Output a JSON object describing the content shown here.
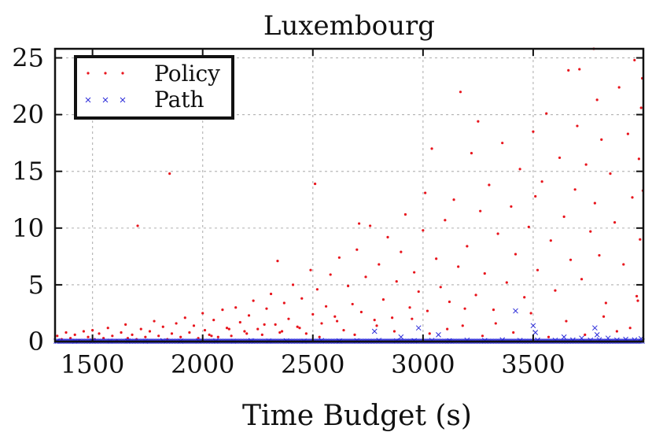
{
  "chart_data": {
    "type": "scatter",
    "title": "Luxembourg",
    "xlabel": "Time Budget (s)",
    "ylabel": "",
    "xlim": [
      1330,
      4000
    ],
    "ylim": [
      0,
      25.8
    ],
    "xticks": [
      1500,
      2000,
      2500,
      3000,
      3500
    ],
    "yticks": [
      0,
      5,
      10,
      15,
      20,
      25
    ],
    "xtick_labels": [
      "1500",
      "2000",
      "2500",
      "3000",
      "3500"
    ],
    "ytick_labels": [
      "0",
      "5",
      "10",
      "15",
      "20",
      "25"
    ],
    "grid": true,
    "legend_position": "top-left",
    "series": [
      {
        "name": "Policy",
        "marker": "dot",
        "color": "#e8141c",
        "points": [
          [
            1340,
            0.5
          ],
          [
            1360,
            0.2
          ],
          [
            1380,
            0.8
          ],
          [
            1400,
            0.3
          ],
          [
            1420,
            0.6
          ],
          [
            1440,
            0.1
          ],
          [
            1460,
            0.9
          ],
          [
            1480,
            0.4
          ],
          [
            1500,
            1.0
          ],
          [
            1510,
            0.2
          ],
          [
            1530,
            0.7
          ],
          [
            1550,
            0.3
          ],
          [
            1570,
            1.2
          ],
          [
            1590,
            0.5
          ],
          [
            1610,
            0.1
          ],
          [
            1630,
            0.8
          ],
          [
            1650,
            1.5
          ],
          [
            1660,
            0.3
          ],
          [
            1680,
            0.6
          ],
          [
            1700,
            0.2
          ],
          [
            1705,
            10.2
          ],
          [
            1720,
            1.1
          ],
          [
            1740,
            0.4
          ],
          [
            1760,
            0.9
          ],
          [
            1780,
            1.8
          ],
          [
            1800,
            0.5
          ],
          [
            1820,
            1.3
          ],
          [
            1840,
            0.2
          ],
          [
            1850,
            14.8
          ],
          [
            1860,
            0.7
          ],
          [
            1880,
            1.6
          ],
          [
            1900,
            0.4
          ],
          [
            1920,
            2.1
          ],
          [
            1940,
            0.8
          ],
          [
            1960,
            1.4
          ],
          [
            1980,
            0.3
          ],
          [
            2000,
            2.5
          ],
          [
            2010,
            1.0
          ],
          [
            2030,
            0.6
          ],
          [
            2050,
            1.9
          ],
          [
            2070,
            0.4
          ],
          [
            2090,
            2.8
          ],
          [
            2110,
            1.2
          ],
          [
            2130,
            0.5
          ],
          [
            2150,
            3.0
          ],
          [
            2170,
            1.7
          ],
          [
            2190,
            0.9
          ],
          [
            2210,
            2.3
          ],
          [
            2230,
            3.6
          ],
          [
            2250,
            1.1
          ],
          [
            2270,
            0.6
          ],
          [
            2290,
            2.9
          ],
          [
            2310,
            4.2
          ],
          [
            2330,
            1.5
          ],
          [
            2340,
            7.1
          ],
          [
            2350,
            0.8
          ],
          [
            2370,
            3.4
          ],
          [
            2390,
            2.0
          ],
          [
            2410,
            5.0
          ],
          [
            2430,
            1.3
          ],
          [
            2450,
            3.8
          ],
          [
            2470,
            0.7
          ],
          [
            2490,
            6.3
          ],
          [
            2500,
            2.4
          ],
          [
            2510,
            13.9
          ],
          [
            2520,
            4.6
          ],
          [
            2540,
            1.6
          ],
          [
            2560,
            3.1
          ],
          [
            2580,
            5.9
          ],
          [
            2600,
            2.2
          ],
          [
            2620,
            7.4
          ],
          [
            2640,
            1.0
          ],
          [
            2660,
            4.9
          ],
          [
            2680,
            3.3
          ],
          [
            2700,
            8.1
          ],
          [
            2710,
            10.4
          ],
          [
            2720,
            2.6
          ],
          [
            2740,
            5.7
          ],
          [
            2760,
            10.2
          ],
          [
            2780,
            1.9
          ],
          [
            2800,
            6.8
          ],
          [
            2820,
            3.7
          ],
          [
            2840,
            9.2
          ],
          [
            2860,
            2.1
          ],
          [
            2880,
            5.3
          ],
          [
            2900,
            7.9
          ],
          [
            2920,
            11.2
          ],
          [
            2940,
            3.0
          ],
          [
            2960,
            6.1
          ],
          [
            2980,
            4.4
          ],
          [
            3000,
            9.8
          ],
          [
            3010,
            13.1
          ],
          [
            3020,
            2.7
          ],
          [
            3040,
            17.0
          ],
          [
            3060,
            7.3
          ],
          [
            3080,
            4.8
          ],
          [
            3100,
            10.7
          ],
          [
            3120,
            3.5
          ],
          [
            3140,
            12.5
          ],
          [
            3160,
            6.6
          ],
          [
            3170,
            22.0
          ],
          [
            3180,
            1.4
          ],
          [
            3200,
            8.4
          ],
          [
            3220,
            16.6
          ],
          [
            3240,
            4.1
          ],
          [
            3250,
            19.4
          ],
          [
            3260,
            11.5
          ],
          [
            3280,
            6.0
          ],
          [
            3300,
            13.8
          ],
          [
            3320,
            2.8
          ],
          [
            3340,
            9.5
          ],
          [
            3360,
            17.5
          ],
          [
            3380,
            5.2
          ],
          [
            3400,
            11.9
          ],
          [
            3420,
            7.7
          ],
          [
            3440,
            15.2
          ],
          [
            3460,
            3.9
          ],
          [
            3480,
            10.1
          ],
          [
            3500,
            18.5
          ],
          [
            3510,
            12.8
          ],
          [
            3520,
            6.3
          ],
          [
            3540,
            14.1
          ],
          [
            3560,
            20.1
          ],
          [
            3580,
            8.9
          ],
          [
            3600,
            4.5
          ],
          [
            3620,
            16.2
          ],
          [
            3640,
            11.0
          ],
          [
            3660,
            23.9
          ],
          [
            3670,
            7.2
          ],
          [
            3690,
            13.4
          ],
          [
            3700,
            19.0
          ],
          [
            3710,
            24.0
          ],
          [
            3720,
            5.5
          ],
          [
            3740,
            15.6
          ],
          [
            3760,
            9.7
          ],
          [
            3775,
            25.8
          ],
          [
            3780,
            12.2
          ],
          [
            3790,
            21.3
          ],
          [
            3800,
            7.6
          ],
          [
            3810,
            17.8
          ],
          [
            3830,
            3.4
          ],
          [
            3850,
            14.8
          ],
          [
            3870,
            10.5
          ],
          [
            3890,
            22.4
          ],
          [
            3910,
            6.8
          ],
          [
            3930,
            18.3
          ],
          [
            3950,
            12.7
          ],
          [
            3960,
            24.8
          ],
          [
            3970,
            4.0
          ],
          [
            3980,
            16.1
          ],
          [
            3985,
            9.0
          ],
          [
            3990,
            20.6
          ],
          [
            3995,
            23.2
          ],
          [
            3998,
            13.3
          ],
          [
            3975,
            3.6
          ],
          [
            3940,
            1.2
          ],
          [
            3880,
            0.9
          ],
          [
            3820,
            2.2
          ],
          [
            3735,
            0.6
          ],
          [
            3650,
            1.8
          ],
          [
            3570,
            0.4
          ],
          [
            3490,
            2.5
          ],
          [
            3410,
            0.8
          ],
          [
            3330,
            1.6
          ],
          [
            3270,
            0.5
          ],
          [
            3190,
            2.9
          ],
          [
            3110,
            1.1
          ],
          [
            3030,
            0.7
          ],
          [
            2950,
            2.0
          ],
          [
            2870,
            0.9
          ],
          [
            2790,
            1.4
          ],
          [
            2690,
            0.6
          ],
          [
            2610,
            1.8
          ],
          [
            2530,
            0.4
          ],
          [
            2440,
            1.2
          ],
          [
            2360,
            0.9
          ],
          [
            2280,
            1.5
          ],
          [
            2200,
            0.7
          ],
          [
            2120,
            1.1
          ],
          [
            2040,
            0.5
          ]
        ]
      },
      {
        "name": "Path",
        "marker": "cross",
        "color": "#2b2bd9",
        "points": [
          [
            1340,
            0.05
          ],
          [
            1420,
            0.03
          ],
          [
            1500,
            0.06
          ],
          [
            1580,
            0.04
          ],
          [
            1660,
            0.05
          ],
          [
            1740,
            0.03
          ],
          [
            1820,
            0.07
          ],
          [
            1900,
            0.04
          ],
          [
            1980,
            0.05
          ],
          [
            2060,
            0.06
          ],
          [
            2140,
            0.03
          ],
          [
            2220,
            0.08
          ],
          [
            2300,
            0.05
          ],
          [
            2380,
            0.06
          ],
          [
            2460,
            0.04
          ],
          [
            2540,
            0.09
          ],
          [
            2620,
            0.05
          ],
          [
            2700,
            0.07
          ],
          [
            2780,
            0.9
          ],
          [
            2800,
            0.1
          ],
          [
            2880,
            0.06
          ],
          [
            2900,
            0.4
          ],
          [
            2960,
            0.08
          ],
          [
            2980,
            1.2
          ],
          [
            3040,
            0.1
          ],
          [
            3070,
            0.6
          ],
          [
            3120,
            0.07
          ],
          [
            3200,
            0.12
          ],
          [
            3280,
            0.09
          ],
          [
            3360,
            0.15
          ],
          [
            3420,
            2.7
          ],
          [
            3440,
            0.1
          ],
          [
            3500,
            1.4
          ],
          [
            3510,
            0.8
          ],
          [
            3520,
            0.13
          ],
          [
            3600,
            0.11
          ],
          [
            3640,
            0.4
          ],
          [
            3680,
            0.14
          ],
          [
            3720,
            0.3
          ],
          [
            3760,
            0.12
          ],
          [
            3780,
            1.2
          ],
          [
            3790,
            0.6
          ],
          [
            3800,
            0.16
          ],
          [
            3840,
            0.3
          ],
          [
            3880,
            0.13
          ],
          [
            3920,
            0.2
          ],
          [
            3960,
            0.15
          ],
          [
            3990,
            0.25
          ]
        ]
      }
    ]
  },
  "colors": {
    "policy": "#e8141c",
    "path": "#2b2bd9",
    "grid": "#b8b8b8",
    "frame": "#111111"
  }
}
